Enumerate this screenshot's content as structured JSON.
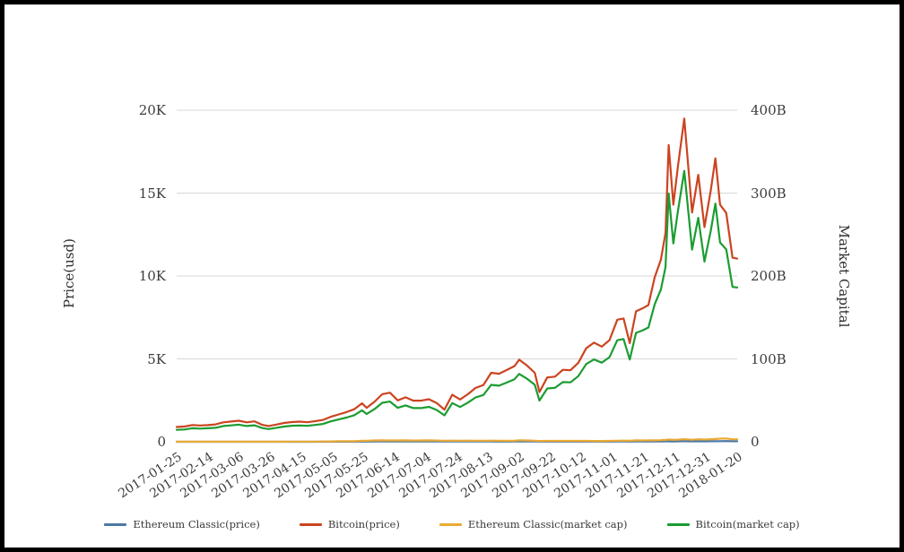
{
  "chart_data": {
    "type": "line",
    "title": "",
    "ylabel_left": "Price(usd)",
    "ylabel_right": "Market Capital",
    "grid": true,
    "legend_position": "bottom",
    "left_axis": {
      "tick_labels": [
        "0",
        "5K",
        "10K",
        "15K",
        "20K"
      ],
      "tick_values": [
        0,
        5000,
        10000,
        15000,
        20000
      ],
      "min": 0,
      "max": 20000
    },
    "right_axis": {
      "tick_labels": [
        "0",
        "100B",
        "200B",
        "300B",
        "400B"
      ],
      "tick_values": [
        0,
        100,
        200,
        300,
        400
      ],
      "min": 0,
      "max": 400,
      "unit": "billions USD"
    },
    "x_tick_labels": [
      "2017-01-25",
      "2017-02-14",
      "2017-03-06",
      "2017-03-26",
      "2017-04-15",
      "2017-05-05",
      "2017-05-25",
      "2017-06-14",
      "2017-07-04",
      "2017-07-24",
      "2017-08-13",
      "2017-09-02",
      "2017-09-22",
      "2017-10-12",
      "2017-11-01",
      "2017-11-21",
      "2017-12-11",
      "2017-12-31",
      "2018-01-20"
    ],
    "dates": [
      "2017-01-25",
      "2017-01-30",
      "2017-02-04",
      "2017-02-09",
      "2017-02-14",
      "2017-02-19",
      "2017-02-24",
      "2017-03-01",
      "2017-03-06",
      "2017-03-11",
      "2017-03-16",
      "2017-03-21",
      "2017-03-25",
      "2017-03-30",
      "2017-04-04",
      "2017-04-09",
      "2017-04-14",
      "2017-04-19",
      "2017-04-24",
      "2017-04-29",
      "2017-05-04",
      "2017-05-09",
      "2017-05-14",
      "2017-05-19",
      "2017-05-24",
      "2017-05-27",
      "2017-06-01",
      "2017-06-06",
      "2017-06-11",
      "2017-06-16",
      "2017-06-21",
      "2017-06-26",
      "2017-07-01",
      "2017-07-06",
      "2017-07-11",
      "2017-07-16",
      "2017-07-21",
      "2017-07-26",
      "2017-07-31",
      "2017-08-05",
      "2017-08-10",
      "2017-08-15",
      "2017-08-20",
      "2017-08-25",
      "2017-08-30",
      "2017-09-02",
      "2017-09-07",
      "2017-09-12",
      "2017-09-15",
      "2017-09-20",
      "2017-09-25",
      "2017-09-30",
      "2017-10-05",
      "2017-10-10",
      "2017-10-15",
      "2017-10-20",
      "2017-10-25",
      "2017-10-30",
      "2017-11-04",
      "2017-11-08",
      "2017-11-12",
      "2017-11-16",
      "2017-11-20",
      "2017-11-24",
      "2017-11-28",
      "2017-12-02",
      "2017-12-05",
      "2017-12-07",
      "2017-12-10",
      "2017-12-13",
      "2017-12-17",
      "2017-12-22",
      "2017-12-26",
      "2017-12-30",
      "2018-01-03",
      "2018-01-06",
      "2018-01-09",
      "2018-01-13",
      "2018-01-17",
      "2018-01-20"
    ],
    "series": [
      {
        "name": "Ethereum Classic(price)",
        "color": "#4c77a5",
        "axis": "left",
        "values": [
          1.35,
          1.3,
          1.35,
          1.3,
          1.28,
          1.25,
          1.22,
          1.2,
          1.18,
          1.15,
          1.1,
          1.05,
          1.02,
          1.1,
          1.4,
          1.8,
          2.1,
          2.4,
          2.6,
          3.1,
          4.8,
          6.5,
          7.2,
          6.8,
          14,
          12.5,
          17,
          18.5,
          16.9,
          17.5,
          18.2,
          16.5,
          17.6,
          18.9,
          16.2,
          14.1,
          15,
          14.3,
          14.5,
          14.1,
          13.9,
          14.4,
          13.5,
          12.9,
          13.8,
          19.2,
          17.5,
          13.9,
          10.4,
          11.8,
          11.4,
          11.6,
          11.3,
          10.9,
          10.8,
          10.5,
          10.3,
          10.8,
          13.6,
          14.6,
          12.6,
          17.8,
          17.2,
          17.4,
          18.2,
          20.5,
          24.8,
          28.2,
          24,
          26.8,
          32.1,
          26,
          31.2,
          27.5,
          31,
          34.5,
          38.8,
          41,
          30.5,
          31.2
        ]
      },
      {
        "name": "Bitcoin(price)",
        "color": "#cb4420",
        "axis": "left",
        "values": [
          894,
          920,
          1012,
          985,
          1008,
          1048,
          1174,
          1222,
          1272,
          1175,
          1230,
          1020,
          950,
          1040,
          1135,
          1190,
          1215,
          1180,
          1245,
          1320,
          1510,
          1650,
          1790,
          1960,
          2320,
          2050,
          2410,
          2870,
          2960,
          2500,
          2680,
          2480,
          2480,
          2570,
          2340,
          1940,
          2840,
          2550,
          2870,
          3250,
          3420,
          4160,
          4100,
          4330,
          4570,
          4950,
          4600,
          4160,
          3000,
          3880,
          3930,
          4340,
          4320,
          4770,
          5640,
          5980,
          5740,
          6130,
          7360,
          7440,
          5950,
          7870,
          8040,
          8250,
          9920,
          10980,
          12600,
          17900,
          14300,
          16650,
          19500,
          13830,
          16100,
          12950,
          15150,
          17100,
          14300,
          13800,
          11100,
          11050
        ]
      },
      {
        "name": "Ethereum Classic(market cap)",
        "color": "#eaaa34",
        "axis": "right",
        "values": [
          0.12,
          0.12,
          0.12,
          0.12,
          0.12,
          0.11,
          0.11,
          0.11,
          0.11,
          0.11,
          0.1,
          0.1,
          0.09,
          0.1,
          0.13,
          0.17,
          0.19,
          0.22,
          0.24,
          0.29,
          0.44,
          0.6,
          0.67,
          0.63,
          1.3,
          1.16,
          1.58,
          1.72,
          1.57,
          1.63,
          1.7,
          1.54,
          1.65,
          1.77,
          1.52,
          1.32,
          1.41,
          1.35,
          1.37,
          1.33,
          1.31,
          1.36,
          1.28,
          1.22,
          1.31,
          1.82,
          1.66,
          1.32,
          0.99,
          1.12,
          1.09,
          1.11,
          1.08,
          1.04,
          1.03,
          1.01,
          0.99,
          1.04,
          1.31,
          1.41,
          1.22,
          1.72,
          1.66,
          1.68,
          1.76,
          1.99,
          2.28,
          2.74,
          2.33,
          2.61,
          3.13,
          2.54,
          3.05,
          2.69,
          3.03,
          3.38,
          3.8,
          4.02,
          3,
          3.07
        ]
      },
      {
        "name": "Bitcoin(market cap)",
        "color": "#1b9c31",
        "axis": "right",
        "values": [
          14.4,
          14.8,
          16.3,
          15.9,
          16.3,
          16.9,
          19,
          19.8,
          20.6,
          19,
          19.9,
          16.5,
          15.4,
          16.9,
          18.4,
          19.3,
          19.7,
          19.2,
          20.3,
          21.5,
          24.6,
          26.9,
          29.2,
          32,
          37.9,
          33.5,
          39.4,
          47,
          48.5,
          41,
          43.9,
          40.7,
          40.7,
          42.2,
          38.4,
          31.9,
          46.7,
          41.9,
          47.2,
          53.5,
          56.4,
          68.6,
          67.7,
          71.5,
          75.5,
          81.8,
          76.1,
          68.8,
          49.7,
          64.3,
          65.1,
          72,
          71.7,
          79.2,
          93.7,
          99.4,
          95.5,
          102,
          122.5,
          124,
          99.2,
          131.3,
          134.2,
          137.8,
          165.8,
          183.6,
          210.8,
          299.5,
          239.4,
          278.9,
          326.8,
          231.9,
          270.2,
          217.4,
          254.4,
          287.3,
          240.4,
          232.1,
          186.8,
          186.2
        ]
      }
    ],
    "style": {
      "gridline_color": "#d7d7d7",
      "text_color": "#3c3c3c",
      "background": "#ffffff"
    }
  }
}
